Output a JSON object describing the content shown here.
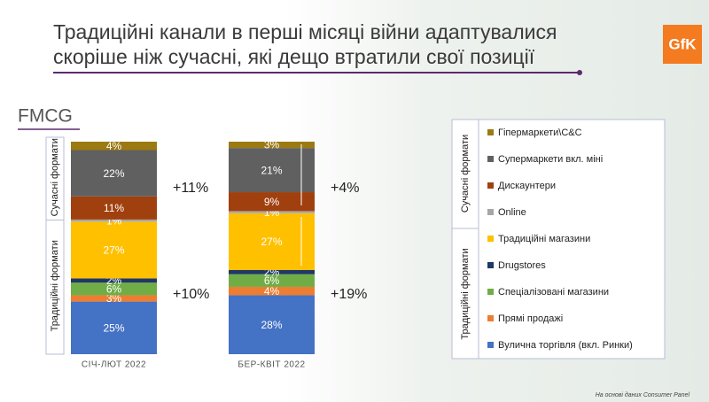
{
  "chart_data": {
    "type": "bar",
    "stacked": true,
    "title": [
      "Традиційні канали в перші місяці війни адаптувалися",
      "скоріше ніж сучасні, які дещо втратили свої позиції"
    ],
    "subtitle": "FMCG",
    "brand": "GfK",
    "source": "На основі даних Consumer Panel",
    "categories": [
      "СІЧ-ЛЮТ 2022",
      "БЕР-КВІТ 2022"
    ],
    "group_labels": [
      "Сучасні формати",
      "Традиційні формати"
    ],
    "series": [
      {
        "name": "Вулична торгівля (вкл. Ринки)",
        "color": "#4472c4",
        "values": [
          25,
          28
        ],
        "value_labels": [
          "25%",
          "28%"
        ]
      },
      {
        "name": "Прямі продажі",
        "color": "#ed7d31",
        "values": [
          3,
          4
        ],
        "value_labels": [
          "3%",
          "4%"
        ]
      },
      {
        "name": "Спеціалізовані магазини",
        "color": "#70ad47",
        "values": [
          6,
          6
        ],
        "value_labels": [
          "6%",
          "6%"
        ]
      },
      {
        "name": "Drugstores",
        "color": "#1f3864",
        "values": [
          2,
          2
        ],
        "value_labels": [
          "2%",
          "2%"
        ]
      },
      {
        "name": "Традиційні магазини",
        "color": "#ffc000",
        "values": [
          27,
          27
        ],
        "value_labels": [
          "27%",
          "27%"
        ]
      },
      {
        "name": "Online",
        "color": "#a6a6a6",
        "values": [
          1,
          1
        ],
        "value_labels": [
          "1%",
          "1%"
        ]
      },
      {
        "name": "Дискаунтери",
        "color": "#a0400f",
        "values": [
          11,
          9
        ],
        "value_labels": [
          "11%",
          "9%"
        ]
      },
      {
        "name": "Супермаркети вкл. міні",
        "color": "#606060",
        "values": [
          22,
          21
        ],
        "value_labels": [
          "22%",
          "21%"
        ]
      },
      {
        "name": "Гіпермаркети\\C&C",
        "color": "#9c7a12",
        "values": [
          4,
          3
        ],
        "value_labels": [
          "4%",
          "3%"
        ]
      }
    ],
    "annotations": [
      {
        "text": "+11%",
        "category": 0,
        "group": 0
      },
      {
        "text": "+10%",
        "category": 0,
        "group": 1
      },
      {
        "text": "+4%",
        "category": 1,
        "group": 0
      },
      {
        "text": "+19%",
        "category": 1,
        "group": 1
      }
    ]
  }
}
